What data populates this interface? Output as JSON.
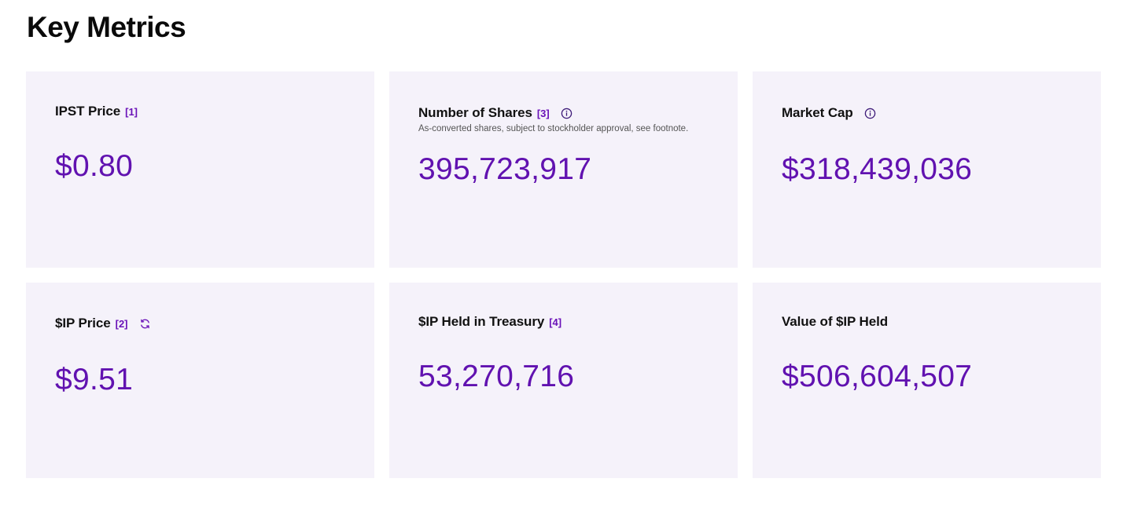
{
  "page": {
    "title": "Key Metrics"
  },
  "colors": {
    "card_background": "#f5f2fa",
    "accent": "#6112b0",
    "text": "#111111"
  },
  "cards": [
    {
      "label": "IPST Price",
      "footnote": "[1]",
      "icon": null,
      "subtitle": null,
      "value": "$0.80"
    },
    {
      "label": "Number of Shares",
      "footnote": "[3]",
      "icon": "info-icon",
      "subtitle": "As-converted shares, subject to stockholder approval, see footnote.",
      "value": "395,723,917"
    },
    {
      "label": "Market Cap",
      "footnote": null,
      "icon": "info-icon",
      "subtitle": null,
      "value": "$318,439,036"
    },
    {
      "label": "$IP Price",
      "footnote": "[2]",
      "icon": "refresh-icon",
      "subtitle": null,
      "value": "$9.51"
    },
    {
      "label": "$IP Held in Treasury",
      "footnote": "[4]",
      "icon": null,
      "subtitle": null,
      "value": "53,270,716"
    },
    {
      "label": "Value of $IP Held",
      "footnote": null,
      "icon": null,
      "subtitle": null,
      "value": "$506,604,507"
    }
  ]
}
